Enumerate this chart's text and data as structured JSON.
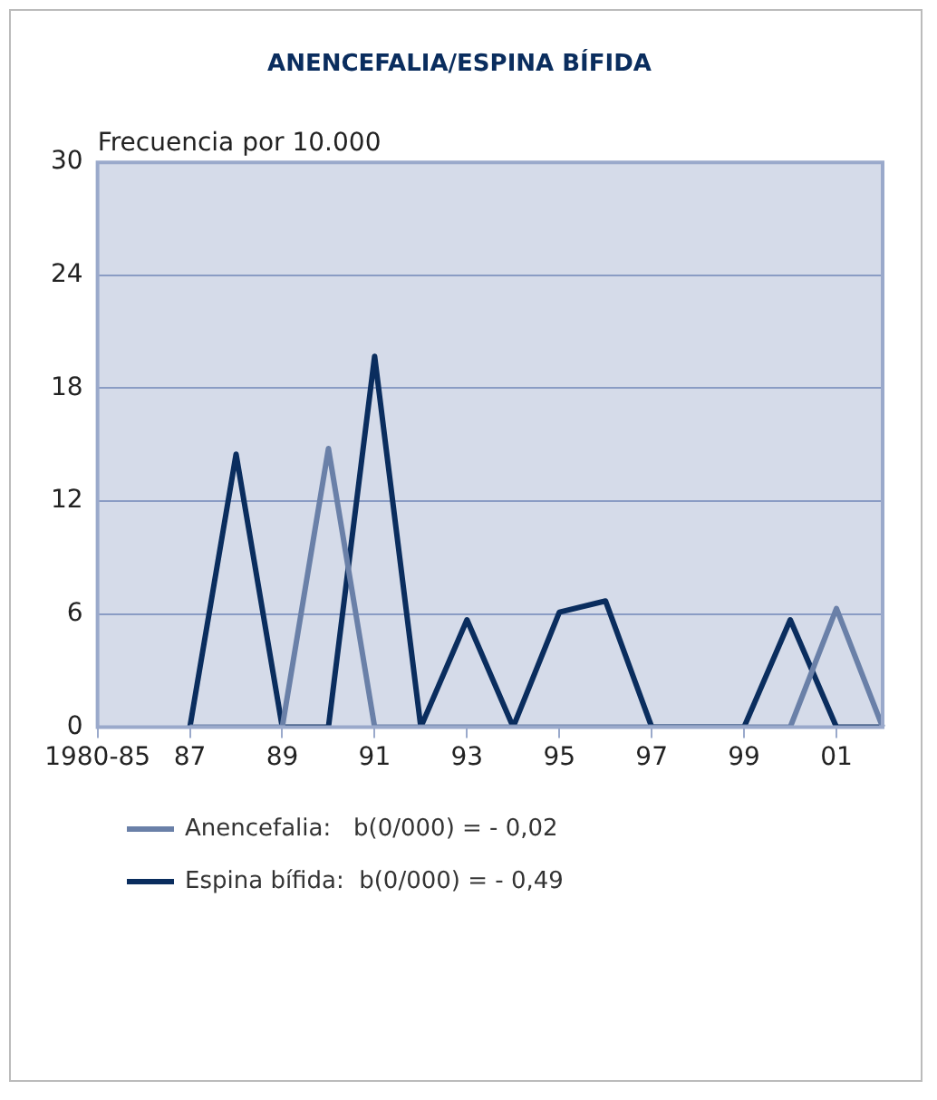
{
  "chart_data": {
    "type": "line",
    "title": "ANENCEFALIA/ESPINA BÍFIDA",
    "ylabel": "Frecuencia por 10.000",
    "categories": [
      "1980-85",
      null,
      "87",
      null,
      "89",
      null,
      "91",
      null,
      "93",
      null,
      "95",
      null,
      "97",
      null,
      "99",
      null,
      "01",
      null
    ],
    "series": [
      {
        "name": "Anencefalia:   b(0/000) = - 0,02",
        "color": "#6a80a8",
        "values": [
          null,
          null,
          0,
          0,
          0,
          14.8,
          0,
          0,
          0,
          0,
          0,
          0,
          0,
          0,
          0,
          0,
          6.3,
          0
        ]
      },
      {
        "name": "Espina bífida:  b(0/000) = - 0,49",
        "color": "#0a2d5e",
        "values": [
          null,
          null,
          0,
          14.5,
          0,
          0,
          19.7,
          0,
          5.7,
          0,
          6.1,
          6.7,
          0,
          0,
          0,
          5.7,
          0,
          0
        ]
      }
    ],
    "ylim": [
      0,
      30
    ],
    "yticks": [
      0,
      6,
      12,
      18,
      24,
      30
    ],
    "grid": "y",
    "legend": "bottom",
    "marker": "none",
    "line_style": "solid"
  }
}
